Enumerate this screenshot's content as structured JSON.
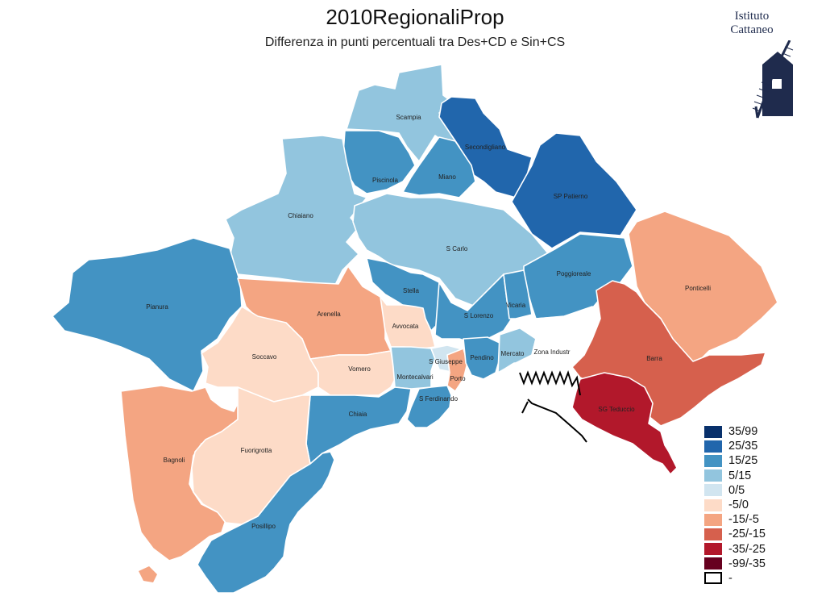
{
  "title": "2010RegionaliProp",
  "subtitle": "Differenza in punti percentuali tra Des+CD e Sin+CS",
  "logo": {
    "line1": "Istituto",
    "line2": "Cattaneo",
    "icon": "windmill-icon"
  },
  "legend": [
    {
      "label": "35/99",
      "color": "#08306b"
    },
    {
      "label": "25/35",
      "color": "#2166ac"
    },
    {
      "label": "15/25",
      "color": "#4393c3"
    },
    {
      "label": "5/15",
      "color": "#92c5de"
    },
    {
      "label": "0/5",
      "color": "#d1e5f0"
    },
    {
      "label": "-5/0",
      "color": "#fddbc7"
    },
    {
      "label": "-15/-5",
      "color": "#f4a582"
    },
    {
      "label": "-25/-15",
      "color": "#d6604d"
    },
    {
      "label": "-35/-25",
      "color": "#b2182b"
    },
    {
      "label": "-99/-35",
      "color": "#67001f"
    },
    {
      "label": "-",
      "color": "#ffffff"
    }
  ],
  "zones": [
    {
      "name": "Scampia",
      "class": "5/15"
    },
    {
      "name": "Secondigliano",
      "class": "25/35"
    },
    {
      "name": "SP Patierno",
      "class": "25/35"
    },
    {
      "name": "Piscinola",
      "class": "15/25"
    },
    {
      "name": "Miano",
      "class": "15/25"
    },
    {
      "name": "Chiaiano",
      "class": "5/15"
    },
    {
      "name": "S Carlo",
      "class": "5/15"
    },
    {
      "name": "Poggioreale",
      "class": "15/25"
    },
    {
      "name": "Ponticelli",
      "class": "-15/-5"
    },
    {
      "name": "Pianura",
      "class": "15/25"
    },
    {
      "name": "Arenella",
      "class": "-15/-5"
    },
    {
      "name": "Stella",
      "class": "15/25"
    },
    {
      "name": "S Lorenzo",
      "class": "15/25"
    },
    {
      "name": "Vicaria",
      "class": "15/25"
    },
    {
      "name": "Avvocata",
      "class": "-5/0"
    },
    {
      "name": "Soccavo",
      "class": "-5/0"
    },
    {
      "name": "Vomero",
      "class": "-5/0"
    },
    {
      "name": "Montecalvari",
      "class": "5/15"
    },
    {
      "name": "S Giuseppe",
      "class": "0/5"
    },
    {
      "name": "Porto",
      "class": "-15/-5"
    },
    {
      "name": "Pendino",
      "class": "15/25"
    },
    {
      "name": "Mercato",
      "class": "5/15"
    },
    {
      "name": "Zona Industr",
      "class": "-"
    },
    {
      "name": "Barra",
      "class": "-25/-15"
    },
    {
      "name": "SG Teduccio",
      "class": "-35/-25"
    },
    {
      "name": "S Ferdinando",
      "class": "15/25"
    },
    {
      "name": "Chiaia",
      "class": "15/25"
    },
    {
      "name": "Bagnoli",
      "class": "-15/-5"
    },
    {
      "name": "Fuorigrotta",
      "class": "-5/0"
    },
    {
      "name": "Posillipo",
      "class": "15/25"
    }
  ]
}
